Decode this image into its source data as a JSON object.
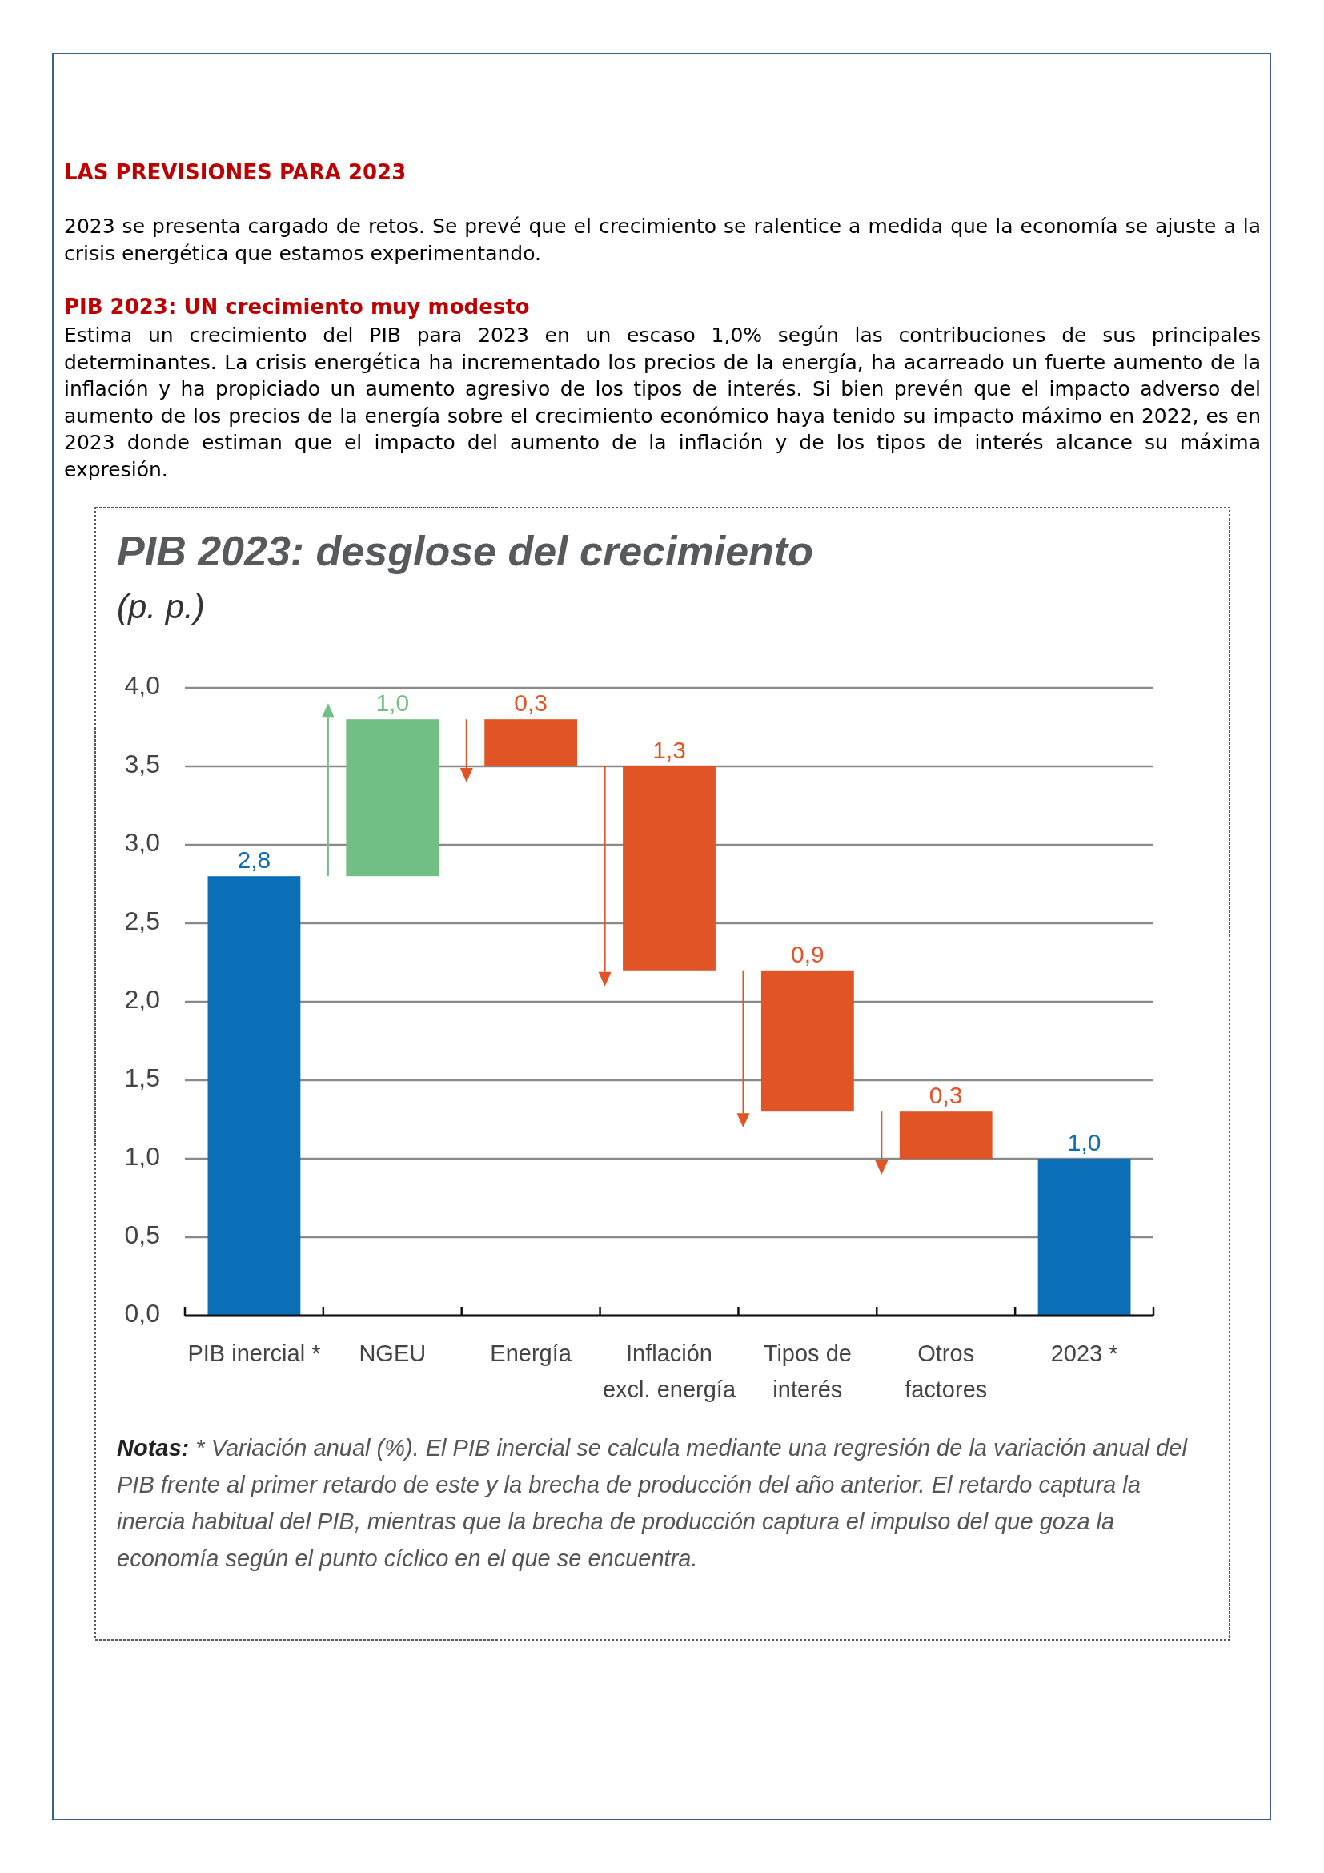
{
  "chart_data": {
    "type": "bar",
    "title": "PIB 2023: desglose del crecimiento",
    "subtitle": "(p. p.)",
    "categories": [
      "PIB inercial *",
      "NGEU",
      "Energía",
      "Inflación excl. energía",
      "Tipos de interés",
      "Otros factores",
      "2023 *"
    ],
    "values": [
      2.8,
      1.0,
      0.3,
      1.3,
      0.9,
      0.3,
      1.0
    ],
    "base": [
      0,
      2.8,
      3.5,
      2.2,
      1.3,
      1.0,
      0
    ],
    "colors": [
      "#0a6fb7",
      "#72bf85",
      "#e05426",
      "#e05426",
      "#e05426",
      "#e05426",
      "#0a6fb7"
    ],
    "value_labels": [
      "2,8",
      "1,0",
      "0,3",
      "1,3",
      "0,9",
      "0,3",
      "1,0"
    ],
    "ylim": [
      0,
      4
    ],
    "yticks": [
      {
        "value": 0,
        "label": "0,0"
      },
      {
        "value": 0.5,
        "label": "0,5"
      },
      {
        "value": 1,
        "label": "1,0"
      },
      {
        "value": 1.5,
        "label": "1,5"
      },
      {
        "value": 2,
        "label": "2,0"
      },
      {
        "value": 2.5,
        "label": "2,5"
      },
      {
        "value": 3,
        "label": "3,0"
      },
      {
        "value": 3.5,
        "label": "3,5"
      },
      {
        "value": 4,
        "label": "4,0"
      }
    ],
    "grid": "y",
    "annotations": [
      "LAS PREVISIONES PARA 2023",
      "2023 se presenta cargado de retos. Se prevé que el crecimiento se ralentice a medida que la economía se ajuste a la crisis energética que estamos experimentando.",
      "PIB 2023: UN crecimiento muy modesto",
      "Estima un crecimiento del PIB para 2023 en un escaso 1,0% según las contribuciones de sus principales determinantes. La crisis energética ha incrementado los precios de la energía, ha acarreado un fuerte aumento de la inflación y ha propiciado un aumento agresivo de los tipos de interés. Si bien prevén que el impacto adverso del aumento de los precios de la energía sobre el crecimiento económico haya tenido su impacto máximo en 2022, es en 2023 donde estiman que el impacto del aumento de la inflación y de los tipos de interés alcance su máxima expresión.",
      "Notas: * Variación anual (%). El PIB inercial se calcula mediante una regresión de la variación anual del PIB frente al primer retardo de este y la brecha de producción del año anterior. El retardo captura la inercia habitual del PIB, mientras que la brecha de producción captura el impulso del que goza la economía según el punto cíclico en el que se encuentra."
    ]
  }
}
